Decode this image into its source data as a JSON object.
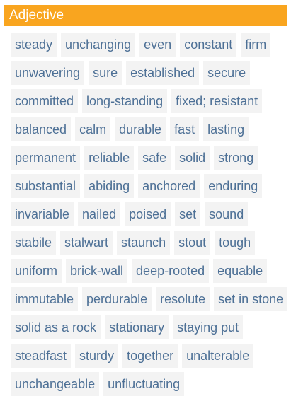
{
  "header": {
    "title": "Adjective"
  },
  "words": [
    "steady",
    "unchanging",
    "even",
    "constant",
    "firm",
    "unwavering",
    "sure",
    "established",
    "secure",
    "committed",
    "long-standing",
    "fixed; resistant",
    "balanced",
    "calm",
    "durable",
    "fast",
    "lasting",
    "permanent",
    "reliable",
    "safe",
    "solid",
    "strong",
    "substantial",
    "abiding",
    "anchored",
    "enduring",
    "invariable",
    "nailed",
    "poised",
    "set",
    "sound",
    "stabile",
    "stalwart",
    "staunch",
    "stout",
    "tough",
    "uniform",
    "brick-wall",
    "deep-rooted",
    "equable",
    "immutable",
    "perdurable",
    "resolute",
    "set in stone",
    "solid as a rock",
    "stationary",
    "staying put",
    "steadfast",
    "sturdy",
    "together",
    "unalterable",
    "unchangeable",
    "unfluctuating"
  ],
  "colors": {
    "header_bg": "#f9a51f",
    "chip_bg": "#f3f3f3",
    "chip_text": "#4d7096"
  }
}
